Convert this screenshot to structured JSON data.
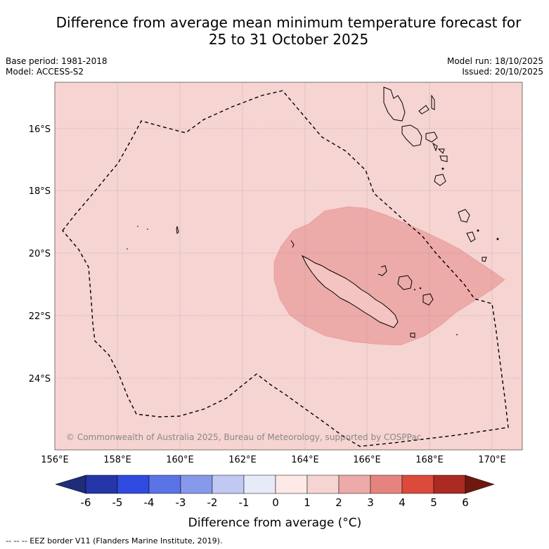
{
  "title": {
    "line1": "Difference from average mean minimum temperature forecast for",
    "line2": "25 to 31 October 2025"
  },
  "meta": {
    "base_period": "Base period: 1981-2018",
    "model": "Model: ACCESS-S2",
    "model_run": "Model run: 18/10/2025",
    "issued": "Issued: 20/10/2025"
  },
  "map": {
    "extent_lon": [
      156,
      171
    ],
    "extent_lat": [
      -14.5,
      -26.2
    ],
    "lat_ticks": [
      "16°S",
      "18°S",
      "20°S",
      "22°S",
      "24°S"
    ],
    "lon_ticks": [
      "156°E",
      "158°E",
      "160°E",
      "162°E",
      "164°E",
      "166°E",
      "168°E",
      "170°E"
    ],
    "background_class": "0 to 1",
    "anomaly_region_class": "2 to 3",
    "copyright": "© Commonwealth of Australia 2025, Bureau of Meteorology, supported by COSPPac"
  },
  "colorbar": {
    "ticks": [
      "-6",
      "-5",
      "-4",
      "-3",
      "-2",
      "-1",
      "0",
      "1",
      "2",
      "3",
      "4",
      "5",
      "6"
    ],
    "colors": [
      "#1f2c7a",
      "#2436a8",
      "#2f4be0",
      "#5a74e6",
      "#8799ea",
      "#c1c8f2",
      "#e6eaf9",
      "#fde9e6",
      "#f6d4d2",
      "#ecaaa8",
      "#e5847e",
      "#dc4a3b",
      "#ab2a22",
      "#6e1810"
    ],
    "label": "Difference from average (°C)"
  },
  "footer": "-- -- -- EEZ border V11 (Flanders Marine Institute, 2019)."
}
